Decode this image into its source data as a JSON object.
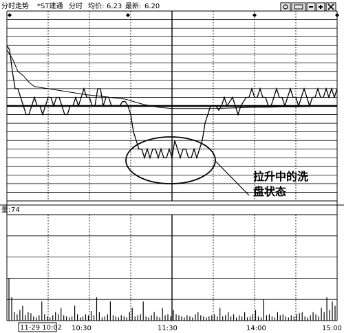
{
  "header": {
    "mode": "分时走势",
    "stock": "*ST建通",
    "section": "分时",
    "avg_label": "均价:",
    "avg_value": "6.23",
    "latest_label": "最新:",
    "latest_value": "6.20"
  },
  "toolbar": {
    "icons": [
      "settings-icon",
      "window-icon",
      "minus-icon",
      "plus-icon",
      "close-icon"
    ]
  },
  "annotation": {
    "line1": "拉升中的洗",
    "line2": "盘状态"
  },
  "chart_data": {
    "type": "line",
    "title": "分时走势 *ST建通",
    "time_ticks": [
      "10:30",
      "11:30",
      "14:00",
      "15:00"
    ],
    "date_label": "11-29 10:02",
    "reference_price": 6.2,
    "price_axis": [
      5.98,
      6.42
    ],
    "markers": [
      2,
      88,
      180,
      240
    ],
    "price_series": {
      "name": "分时",
      "x": [
        0,
        2,
        4,
        6,
        8,
        10,
        12,
        14,
        16,
        18,
        20,
        22,
        24,
        26,
        28,
        30,
        32,
        34,
        36,
        38,
        40,
        42,
        44,
        46,
        48,
        50,
        52,
        54,
        56,
        58,
        60,
        62,
        64,
        66,
        68,
        70,
        72,
        74,
        76,
        78,
        80,
        82,
        84,
        86,
        88,
        90,
        92,
        94,
        96,
        98,
        100,
        102,
        104,
        106,
        108,
        110,
        112,
        114,
        116,
        118,
        120,
        122,
        124,
        126,
        128,
        130,
        132,
        134,
        136,
        138,
        140,
        142,
        144,
        146,
        148,
        150,
        152,
        154,
        156,
        158,
        160,
        162,
        164,
        166,
        168,
        170,
        172,
        174,
        176,
        178,
        180,
        182,
        184,
        186,
        188,
        190,
        192,
        194,
        196,
        198,
        200,
        202,
        204,
        206,
        208,
        210,
        212,
        214,
        216,
        218,
        220,
        222,
        224,
        226,
        228,
        230,
        232,
        234,
        236,
        238,
        240
      ],
      "values": [
        6.34,
        6.33,
        6.28,
        6.24,
        6.24,
        6.22,
        6.2,
        6.18,
        6.18,
        6.2,
        6.22,
        6.2,
        6.2,
        6.18,
        6.2,
        6.22,
        6.22,
        6.2,
        6.22,
        6.22,
        6.2,
        6.18,
        6.18,
        6.2,
        6.2,
        6.22,
        6.2,
        6.22,
        6.24,
        6.22,
        6.22,
        6.2,
        6.2,
        6.24,
        6.24,
        6.2,
        6.22,
        6.22,
        6.2,
        6.2,
        6.2,
        6.2,
        6.21,
        6.21,
        6.2,
        6.18,
        6.14,
        6.12,
        6.1,
        6.1,
        6.08,
        6.1,
        6.08,
        6.1,
        6.1,
        6.08,
        6.1,
        6.08,
        6.08,
        6.1,
        6.08,
        6.12,
        6.1,
        6.08,
        6.1,
        6.1,
        6.08,
        6.08,
        6.1,
        6.08,
        6.1,
        6.12,
        6.16,
        6.18,
        6.2,
        6.2,
        6.2,
        6.19,
        6.2,
        6.22,
        6.2,
        6.21,
        6.22,
        6.2,
        6.18,
        6.2,
        6.21,
        6.22,
        6.22,
        6.24,
        6.22,
        6.22,
        6.24,
        6.22,
        6.22,
        6.2,
        6.2,
        6.22,
        6.24,
        6.22,
        6.22,
        6.2,
        6.22,
        6.24,
        6.22,
        6.22,
        6.2,
        6.22,
        6.24,
        6.22,
        6.2,
        6.22,
        6.22,
        6.24,
        6.22,
        6.22,
        6.24,
        6.22,
        6.24,
        6.22,
        6.24
      ]
    },
    "avg_series": {
      "name": "均价",
      "x": [
        0,
        4,
        8,
        12,
        16,
        20,
        30,
        40,
        50,
        60,
        70,
        80,
        86,
        90,
        100,
        110,
        120,
        130,
        140,
        150,
        160,
        170,
        180,
        190,
        200,
        210,
        220,
        230,
        240
      ],
      "values": [
        6.33,
        6.31,
        6.28,
        6.27,
        6.255,
        6.245,
        6.24,
        6.235,
        6.23,
        6.225,
        6.222,
        6.218,
        6.216,
        6.212,
        6.203,
        6.197,
        6.194,
        6.194,
        6.194,
        6.194,
        6.195,
        6.196,
        6.197,
        6.197,
        6.198,
        6.198,
        6.199,
        6.2,
        6.2
      ]
    },
    "volume": {
      "label": "量:",
      "latest": "74",
      "max": 100,
      "values": [
        40,
        22,
        8,
        6,
        10,
        14,
        5,
        8,
        7,
        4,
        3,
        5,
        18,
        6,
        4,
        3,
        5,
        8,
        6,
        12,
        5,
        4,
        3,
        4,
        14,
        6,
        3,
        4,
        6,
        5,
        9,
        5,
        22,
        8,
        3,
        4,
        6,
        18,
        5,
        4,
        3,
        5,
        4,
        3,
        8,
        12,
        4,
        5,
        6,
        18,
        4,
        3,
        5,
        8,
        4,
        3,
        12,
        5,
        6,
        4,
        10,
        6,
        5,
        4,
        3,
        5,
        4,
        3,
        6,
        8,
        5,
        4,
        3,
        4,
        5,
        6,
        4,
        12,
        4,
        5,
        8,
        4,
        6,
        3,
        5,
        4,
        8,
        3,
        4,
        6,
        10,
        4,
        3,
        20,
        5,
        6,
        4,
        3,
        8,
        5,
        6,
        4,
        3,
        5,
        4,
        6,
        7,
        8,
        4,
        3,
        5,
        8,
        6,
        4,
        12,
        8,
        22,
        10,
        18,
        14
      ]
    }
  },
  "colors": {
    "line": "#000000",
    "grid": "#000000",
    "background": "#ffffff"
  }
}
